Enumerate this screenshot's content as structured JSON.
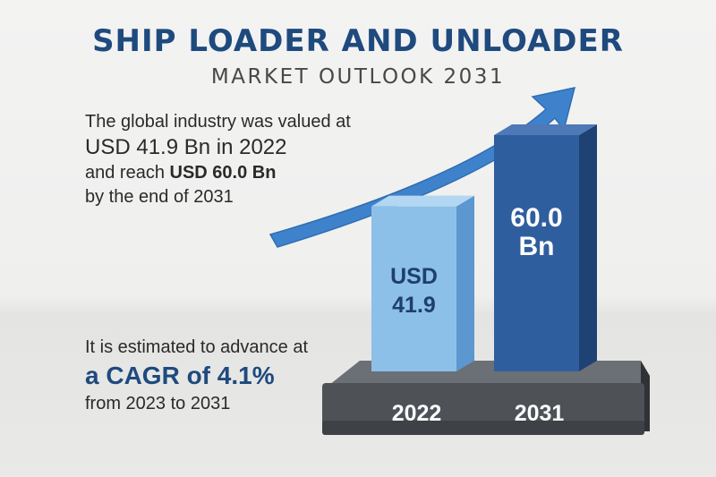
{
  "header": {
    "title": "SHIP LOADER AND UNLOADER",
    "subtitle": "MARKET OUTLOOK 2031"
  },
  "summary": {
    "line1": "The global industry was valued at",
    "line2": "USD 41.9 Bn in 2022",
    "line3_prefix": "and reach ",
    "line3_value": "USD 60.0 Bn",
    "line4": "by the end of 2031"
  },
  "cagr": {
    "line1": "It is estimated to advance at",
    "line2": "a CAGR of 4.1%",
    "line3": "from 2023 to 2031"
  },
  "colors": {
    "title": "#1e4a7e",
    "bar_light": "#8cc0e8",
    "bar_dark": "#2f5e9e",
    "arrow": "#3f82cc",
    "platform": "#4e5257"
  },
  "icons": [
    "growth-arrow-icon"
  ],
  "chart_data": {
    "type": "bar",
    "categories": [
      "2022",
      "2031"
    ],
    "values": [
      41.9,
      60.0
    ],
    "value_labels": [
      [
        "USD",
        "41.9"
      ],
      [
        "60.0",
        "Bn"
      ]
    ],
    "ylim": [
      0,
      60
    ]
  }
}
